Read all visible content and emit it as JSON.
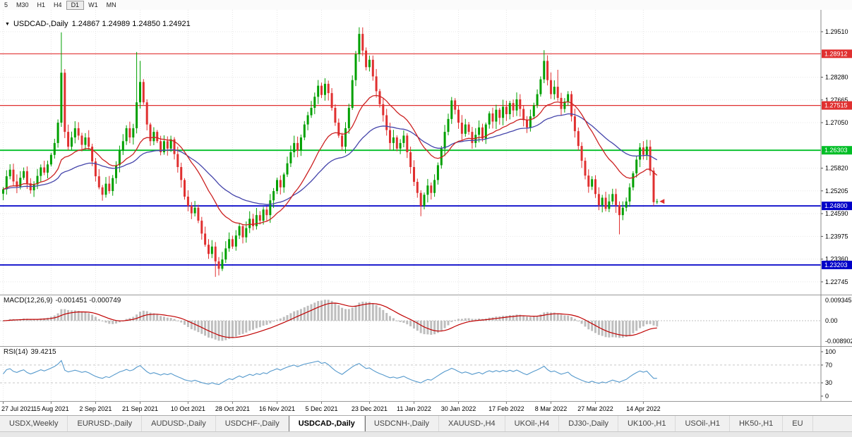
{
  "toolbar": {
    "timeframes": [
      {
        "label": "5",
        "selected": false
      },
      {
        "label": "M30",
        "selected": false
      },
      {
        "label": "H1",
        "selected": false
      },
      {
        "label": "H4",
        "selected": false
      },
      {
        "label": "D1",
        "selected": true
      },
      {
        "label": "W1",
        "selected": false
      },
      {
        "label": "MN",
        "selected": false
      }
    ]
  },
  "chart": {
    "dropdown_icon": "▼",
    "symbol_label": "USDCAD-,Daily",
    "ohlc_label": "1.24867 1.24989 1.24850 1.24921"
  },
  "indicators": {
    "macd": {
      "name": "MACD(12,26,9)",
      "values": "-0.001451 -0.000749",
      "axis_top": "0.009345",
      "axis_zero": "0.00",
      "axis_bottom": "-0.008902"
    },
    "rsi": {
      "name": "RSI(14)",
      "value": "39.4215",
      "axis": [
        "100",
        "70",
        "30",
        "0"
      ]
    }
  },
  "chart_data": {
    "type": "candlestick",
    "symbol": "USDCAD-",
    "timeframe": "Daily",
    "title_note": "USDCAD daily candles with MACD(12,26,9) and RSI(14) subpanels",
    "ohlc_current": {
      "open": 1.24867,
      "high": 1.24989,
      "low": 1.2485,
      "close": 1.24921
    },
    "ylim": [
      1.224,
      1.301
    ],
    "y_ticks": [
      1.2951,
      1.2828,
      1.27665,
      1.2705,
      1.2582,
      1.25205,
      1.2459,
      1.23975,
      1.2336,
      1.22745
    ],
    "levels": [
      {
        "price": 1.28912,
        "label": "1.28912",
        "color": "#E03030",
        "lw": 1.2
      },
      {
        "price": 1.27515,
        "label": "1.27515",
        "color": "#E03030",
        "lw": 1.2
      },
      {
        "price": 1.26303,
        "label": "1.26303",
        "color": "#00BE26",
        "lw": 1.8
      },
      {
        "price": 1.248,
        "label": "1.24800",
        "color": "#0000C8",
        "lw": 1.8
      },
      {
        "price": 1.23203,
        "label": "1.23203",
        "color": "#0000C8",
        "lw": 1.8
      }
    ],
    "x_ticks": [
      {
        "i": 0,
        "label": "27 Jul 2021"
      },
      {
        "i": 14,
        "label": "15 Aug 2021"
      },
      {
        "i": 27,
        "label": "2 Sep 2021"
      },
      {
        "i": 40,
        "label": "21 Sep 2021"
      },
      {
        "i": 54,
        "label": "10 Oct 2021"
      },
      {
        "i": 67,
        "label": "28 Oct 2021"
      },
      {
        "i": 80,
        "label": "16 Nov 2021"
      },
      {
        "i": 93,
        "label": "5 Dec 2021"
      },
      {
        "i": 107,
        "label": "23 Dec 2021"
      },
      {
        "i": 120,
        "label": "11 Jan 2022"
      },
      {
        "i": 133,
        "label": "30 Jan 2022"
      },
      {
        "i": 147,
        "label": "17 Feb 2022"
      },
      {
        "i": 160,
        "label": "8 Mar 2022"
      },
      {
        "i": 173,
        "label": "27 Mar 2022"
      },
      {
        "i": 187,
        "label": "14 Apr 2022"
      }
    ],
    "closes": [
      1.2525,
      1.256,
      1.2578,
      1.2546,
      1.2532,
      1.2556,
      1.2574,
      1.2541,
      1.2522,
      1.2538,
      1.2561,
      1.2584,
      1.257,
      1.2592,
      1.2618,
      1.265,
      1.2705,
      1.284,
      1.268,
      1.264,
      1.2665,
      1.269,
      1.267,
      1.2645,
      1.2665,
      1.264,
      1.26,
      1.256,
      1.253,
      1.251,
      1.254,
      1.252,
      1.2555,
      1.259,
      1.263,
      1.2655,
      1.269,
      1.2665,
      1.269,
      1.276,
      1.2815,
      1.276,
      1.27,
      1.2655,
      1.268,
      1.2655,
      1.2625,
      1.2655,
      1.2635,
      1.266,
      1.262,
      1.2585,
      1.255,
      1.2505,
      1.248,
      1.246,
      1.2475,
      1.244,
      1.2405,
      1.2375,
      1.235,
      1.237,
      1.233,
      1.231,
      1.2335,
      1.2365,
      1.239,
      1.237,
      1.24,
      1.2425,
      1.2395,
      1.242,
      1.2445,
      1.2425,
      1.2455,
      1.244,
      1.247,
      1.2455,
      1.2495,
      1.252,
      1.255,
      1.253,
      1.2565,
      1.2595,
      1.2625,
      1.265,
      1.263,
      1.2665,
      1.27,
      1.2725,
      1.2745,
      1.2775,
      1.2805,
      1.278,
      1.281,
      1.2785,
      1.2745,
      1.2705,
      1.267,
      1.264,
      1.269,
      1.2745,
      1.282,
      1.289,
      1.2945,
      1.29,
      1.2855,
      1.2875,
      1.283,
      1.279,
      1.2755,
      1.2725,
      1.2685,
      1.265,
      1.2665,
      1.2635,
      1.265,
      1.267,
      1.2625,
      1.2585,
      1.2545,
      1.2515,
      1.248,
      1.251,
      1.2535,
      1.2515,
      1.255,
      1.259,
      1.2635,
      1.268,
      1.2715,
      1.2765,
      1.274,
      1.2705,
      1.2675,
      1.27,
      1.268,
      1.265,
      1.2672,
      1.2692,
      1.2662,
      1.27,
      1.273,
      1.2708,
      1.274,
      1.2718,
      1.2748,
      1.2728,
      1.2758,
      1.2738,
      1.2768,
      1.2742,
      1.2712,
      1.2692,
      1.2722,
      1.2752,
      1.2782,
      1.2822,
      1.2872,
      1.282,
      1.2782,
      1.2802,
      1.2772,
      1.2742,
      1.2762,
      1.2782,
      1.2722,
      1.2682,
      1.2642,
      1.2602,
      1.2562,
      1.2532,
      1.2552,
      1.2512,
      1.2482,
      1.2502,
      1.2472,
      1.2492,
      1.2512,
      1.2482,
      1.2455,
      1.2475,
      1.2492,
      1.253,
      1.2568,
      1.2605,
      1.2638,
      1.2618,
      1.264,
      1.2575,
      1.249,
      1.24921
    ],
    "wick_spikes": {
      "17": {
        "high": 1.2949
      },
      "29": {
        "low": 1.2494
      },
      "39": {
        "high": 1.2896
      },
      "40": {
        "high": 1.2872
      },
      "62": {
        "low": 1.2288
      },
      "63": {
        "low": 1.2292
      },
      "104": {
        "high": 1.2963
      },
      "122": {
        "low": 1.2452
      },
      "158": {
        "high": 1.2901
      },
      "162": {
        "high": 1.2848
      },
      "180": {
        "low": 1.2403
      },
      "190": {
        "low": 1.248
      },
      "191": {
        "high": 1.24989,
        "low": 1.2485
      }
    },
    "macd_panel": {
      "ylim": [
        -0.0085,
        0.0085
      ],
      "params": [
        12,
        26,
        9
      ]
    },
    "rsi_panel": {
      "ylim": [
        0,
        100
      ],
      "period": 14,
      "levels": [
        70,
        30
      ]
    },
    "colors": {
      "up": "#00A000",
      "down": "#E03030",
      "ma_fast": "#CC2222",
      "ma_slow": "#4444AA",
      "macd_hist": "#BEBEBE",
      "macd_signal": "#C00000",
      "rsi_line": "#5599CC",
      "axis_text": "#000000"
    }
  },
  "tabs": [
    {
      "label": "USDX,Weekly",
      "selected": false
    },
    {
      "label": "EURUSD-,Daily",
      "selected": false
    },
    {
      "label": "AUDUSD-,Daily",
      "selected": false
    },
    {
      "label": "USDCHF-,Daily",
      "selected": false
    },
    {
      "label": "USDCAD-,Daily",
      "selected": true
    },
    {
      "label": "USDCNH-,Daily",
      "selected": false
    },
    {
      "label": "XAUUSD-,H4",
      "selected": false
    },
    {
      "label": "UKOil-,H4",
      "selected": false
    },
    {
      "label": "DJ30-,Daily",
      "selected": false
    },
    {
      "label": "UK100-,H1",
      "selected": false
    },
    {
      "label": "USOil-,H1",
      "selected": false
    },
    {
      "label": "HK50-,H1",
      "selected": false
    },
    {
      "label": "EU",
      "selected": false
    }
  ]
}
